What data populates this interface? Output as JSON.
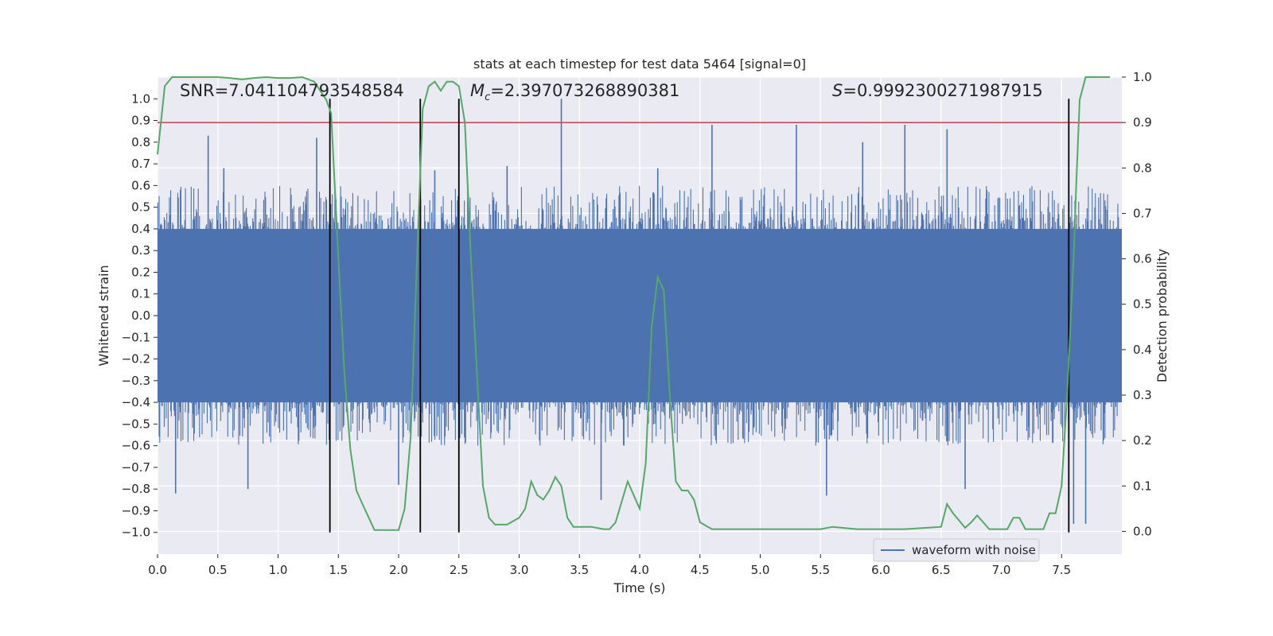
{
  "chart_data": {
    "type": "line",
    "title": "stats at each timestep for test data 5464 [signal=0]",
    "xlabel": "Time (s)",
    "ylabel_left": "Whitened strain",
    "ylabel_right": "Detection probability",
    "xlim": [
      0.0,
      8.0
    ],
    "ylim_left": [
      -1.1,
      1.1
    ],
    "ylim_right": [
      -0.05,
      1.0
    ],
    "x_ticks": [
      "0.0",
      "0.5",
      "1.0",
      "1.5",
      "2.0",
      "2.5",
      "3.0",
      "3.5",
      "4.0",
      "4.5",
      "5.0",
      "5.5",
      "6.0",
      "6.5",
      "7.0",
      "7.5"
    ],
    "x_tick_values": [
      0.0,
      0.5,
      1.0,
      1.5,
      2.0,
      2.5,
      3.0,
      3.5,
      4.0,
      4.5,
      5.0,
      5.5,
      6.0,
      6.5,
      7.0,
      7.5
    ],
    "y_left_ticks": [
      "1.0",
      "0.9",
      "0.8",
      "0.7",
      "0.6",
      "0.5",
      "0.4",
      "0.3",
      "0.2",
      "0.1",
      "0.0",
      "−0.1",
      "−0.2",
      "−0.3",
      "−0.4",
      "−0.5",
      "−0.6",
      "−0.7",
      "−0.8",
      "−0.9",
      "−1.0"
    ],
    "y_left_tick_values": [
      1.0,
      0.9,
      0.8,
      0.7,
      0.6,
      0.5,
      0.4,
      0.3,
      0.2,
      0.1,
      0.0,
      -0.1,
      -0.2,
      -0.3,
      -0.4,
      -0.5,
      -0.6,
      -0.7,
      -0.8,
      -0.9,
      -1.0
    ],
    "y_right_ticks": [
      "1.0",
      "0.9",
      "0.8",
      "0.7",
      "0.6",
      "0.5",
      "0.4",
      "0.3",
      "0.2",
      "0.1",
      "0.0"
    ],
    "y_right_tick_values": [
      1.0,
      0.9,
      0.8,
      0.7,
      0.6,
      0.5,
      0.4,
      0.3,
      0.2,
      0.1,
      0.0
    ],
    "annotations": {
      "snr": "SNR=7.041104793548584",
      "mc_symbol": "M",
      "mc_sub": "c",
      "mc_value": "=2.397073268890381",
      "s_symbol": "S",
      "s_value": "=0.9992300271987915"
    },
    "threshold": {
      "value": 0.9,
      "axis": "right",
      "color": "#c44e52"
    },
    "vertical_lines": [
      1.43,
      2.18,
      2.5,
      7.56
    ],
    "series": [
      {
        "name": "waveform with noise",
        "axis": "left",
        "color": "#4c72b0",
        "envelope": {
          "core_amplitude": 0.4,
          "typical_peak": 0.6,
          "max_peak": 1.0,
          "min_peak": -1.0
        },
        "peaks": [
          [
            0.42,
            0.83
          ],
          [
            0.15,
            -0.82
          ],
          [
            0.55,
            0.68
          ],
          [
            0.75,
            -0.8
          ],
          [
            1.32,
            0.82
          ],
          [
            2.0,
            -0.78
          ],
          [
            2.3,
            0.67
          ],
          [
            2.9,
            0.69
          ],
          [
            3.35,
            1.0
          ],
          [
            3.68,
            -0.85
          ],
          [
            4.15,
            0.68
          ],
          [
            4.6,
            0.88
          ],
          [
            5.3,
            0.88
          ],
          [
            5.55,
            -0.83
          ],
          [
            5.85,
            0.8
          ],
          [
            6.2,
            0.88
          ],
          [
            6.55,
            0.86
          ],
          [
            6.7,
            -0.8
          ],
          [
            7.6,
            -0.96
          ],
          [
            7.7,
            -0.96
          ]
        ]
      },
      {
        "name": "detection probability",
        "axis": "right",
        "color": "#55a868",
        "x": [
          0.0,
          0.06,
          0.12,
          0.2,
          0.3,
          0.4,
          0.5,
          0.6,
          0.7,
          0.8,
          0.9,
          1.0,
          1.1,
          1.2,
          1.3,
          1.4,
          1.44,
          1.5,
          1.55,
          1.6,
          1.65,
          1.7,
          1.8,
          1.9,
          2.0,
          2.05,
          2.1,
          2.15,
          2.2,
          2.25,
          2.3,
          2.35,
          2.4,
          2.45,
          2.5,
          2.55,
          2.6,
          2.7,
          2.75,
          2.8,
          2.9,
          3.0,
          3.05,
          3.1,
          3.15,
          3.2,
          3.25,
          3.3,
          3.35,
          3.4,
          3.45,
          3.5,
          3.6,
          3.7,
          3.75,
          3.8,
          3.9,
          3.95,
          4.0,
          4.05,
          4.1,
          4.15,
          4.2,
          4.25,
          4.3,
          4.35,
          4.4,
          4.45,
          4.5,
          4.6,
          4.8,
          5.0,
          5.3,
          5.5,
          5.6,
          5.8,
          6.0,
          6.2,
          6.5,
          6.55,
          6.6,
          6.7,
          6.75,
          6.8,
          6.9,
          7.0,
          7.05,
          7.1,
          7.15,
          7.2,
          7.3,
          7.35,
          7.4,
          7.45,
          7.5,
          7.55,
          7.6,
          7.62,
          7.65,
          7.7,
          7.75,
          7.8,
          7.9
        ],
        "y": [
          0.83,
          0.98,
          1.0,
          1.0,
          1.0,
          1.0,
          1.0,
          0.998,
          0.995,
          0.998,
          1.0,
          0.998,
          0.998,
          1.0,
          0.99,
          0.95,
          0.92,
          0.6,
          0.35,
          0.18,
          0.09,
          0.06,
          0.003,
          0.003,
          0.003,
          0.05,
          0.21,
          0.58,
          0.93,
          0.98,
          0.99,
          0.97,
          0.99,
          0.99,
          0.98,
          0.9,
          0.6,
          0.1,
          0.03,
          0.015,
          0.015,
          0.03,
          0.05,
          0.11,
          0.08,
          0.07,
          0.09,
          0.12,
          0.1,
          0.03,
          0.01,
          0.01,
          0.01,
          0.005,
          0.005,
          0.02,
          0.11,
          0.08,
          0.05,
          0.15,
          0.45,
          0.56,
          0.53,
          0.3,
          0.11,
          0.09,
          0.09,
          0.07,
          0.02,
          0.005,
          0.005,
          0.005,
          0.005,
          0.005,
          0.01,
          0.005,
          0.005,
          0.005,
          0.01,
          0.06,
          0.04,
          0.008,
          0.02,
          0.035,
          0.005,
          0.005,
          0.005,
          0.03,
          0.03,
          0.005,
          0.005,
          0.005,
          0.04,
          0.04,
          0.1,
          0.32,
          0.6,
          0.75,
          0.95,
          1.0,
          1.0,
          1.0,
          1.0
        ]
      }
    ],
    "legend": {
      "label": "waveform with noise",
      "placement": "lower-right"
    }
  }
}
